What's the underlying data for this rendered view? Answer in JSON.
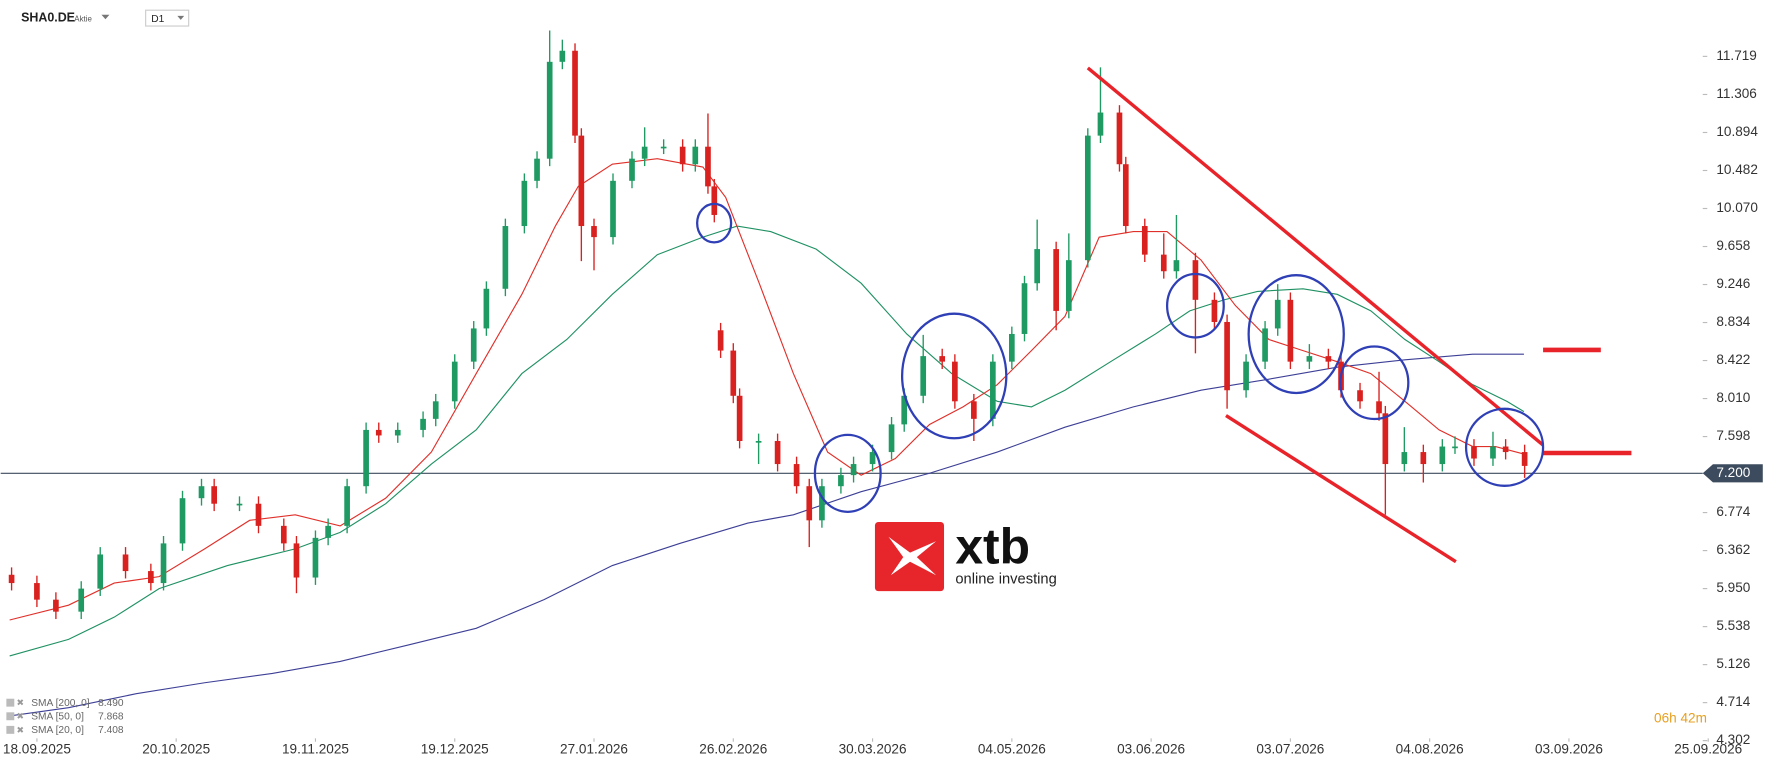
{
  "header": {
    "symbol": "SHA0.DE",
    "instrument_type": "Aktie",
    "interval": "D1"
  },
  "chart_data": {
    "type": "candlestick",
    "x": [
      -4,
      0,
      3,
      7,
      10,
      14,
      18,
      20,
      23,
      26,
      28,
      32,
      35,
      39,
      41,
      44,
      46,
      49,
      52,
      54,
      57,
      61,
      63,
      66,
      69,
      71,
      74,
      77,
      79,
      81,
      83,
      85,
      86,
      88,
      91,
      94,
      96,
      99,
      102,
      104,
      106,
      107,
      108,
      110,
      111,
      114,
      117,
      120,
      122,
      124,
      127,
      129,
      132,
      135,
      137,
      140,
      143,
      145,
      148,
      151,
      154,
      156,
      158,
      161,
      163,
      166,
      168,
      171,
      172,
      175,
      178,
      180,
      183,
      186,
      188,
      191,
      194,
      196,
      198,
      201,
      204,
      206,
      209,
      212,
      213,
      216,
      219,
      222,
      224,
      227,
      230,
      232,
      235
    ],
    "open": [
      6.1,
      6.01,
      5.83,
      5.7,
      5.95,
      6.32,
      6.14,
      6.01,
      6.44,
      6.93,
      7.06,
      6.87,
      6.87,
      6.63,
      6.44,
      6.07,
      6.5,
      6.63,
      7.06,
      7.67,
      7.61,
      7.67,
      7.79,
      7.98,
      8.41,
      8.77,
      9.2,
      9.88,
      10.37,
      10.61,
      11.66,
      11.78,
      10.86,
      9.88,
      9.76,
      10.37,
      10.61,
      10.74,
      10.74,
      10.55,
      10.74,
      10.31,
      8.75,
      8.53,
      8.04,
      7.55,
      7.55,
      7.3,
      7.06,
      6.69,
      7.06,
      7.18,
      7.3,
      7.43,
      7.73,
      8.04,
      8.47,
      8.41,
      7.98,
      7.79,
      8.41,
      8.71,
      9.26,
      9.63,
      8.96,
      9.51,
      10.86,
      11.11,
      10.55,
      9.88,
      9.57,
      9.39,
      9.51,
      9.08,
      8.84,
      8.1,
      8.41,
      8.77,
      9.08,
      8.41,
      8.47,
      8.41,
      8.1,
      7.98,
      7.85,
      7.3,
      7.43,
      7.3,
      7.49,
      7.49,
      7.36,
      7.49,
      7.43
    ],
    "high": [
      6.18,
      6.09,
      5.91,
      6.03,
      6.4,
      6.4,
      6.22,
      6.52,
      7.01,
      7.14,
      7.14,
      6.95,
      6.95,
      6.71,
      6.52,
      6.58,
      6.71,
      7.14,
      7.75,
      7.75,
      7.75,
      7.87,
      8.06,
      8.49,
      8.85,
      9.28,
      9.96,
      10.45,
      10.69,
      12.0,
      11.9,
      11.86,
      10.94,
      9.96,
      10.45,
      10.69,
      10.95,
      10.82,
      10.82,
      10.82,
      11.1,
      10.39,
      8.83,
      8.61,
      8.12,
      7.63,
      7.63,
      7.38,
      7.14,
      7.14,
      7.26,
      7.38,
      7.51,
      7.81,
      8.12,
      8.7,
      8.55,
      8.49,
      8.06,
      8.49,
      8.79,
      9.34,
      9.95,
      9.71,
      9.8,
      10.94,
      11.6,
      11.19,
      10.63,
      9.96,
      9.8,
      10.0,
      9.59,
      9.16,
      8.92,
      8.49,
      8.85,
      9.25,
      9.16,
      8.6,
      8.55,
      8.49,
      8.18,
      8.3,
      7.93,
      7.7,
      7.51,
      7.57,
      7.6,
      7.57,
      7.65,
      7.57,
      7.51
    ],
    "low": [
      5.93,
      5.75,
      5.62,
      5.62,
      5.87,
      6.06,
      5.93,
      5.93,
      6.36,
      6.85,
      6.79,
      6.79,
      6.55,
      6.36,
      5.9,
      5.99,
      6.42,
      6.55,
      6.98,
      7.53,
      7.53,
      7.59,
      7.71,
      7.9,
      8.33,
      8.69,
      9.12,
      9.8,
      10.29,
      10.53,
      11.58,
      10.78,
      9.5,
      9.4,
      9.68,
      10.29,
      10.53,
      10.66,
      10.47,
      10.47,
      10.23,
      9.92,
      8.45,
      7.96,
      7.47,
      7.3,
      7.22,
      6.98,
      6.4,
      6.61,
      6.98,
      7.1,
      7.22,
      7.35,
      7.65,
      7.96,
      8.33,
      7.9,
      7.55,
      7.71,
      8.33,
      8.63,
      9.18,
      8.75,
      8.88,
      9.43,
      10.78,
      10.47,
      9.8,
      9.49,
      9.31,
      9.31,
      8.5,
      8.76,
      7.9,
      8.02,
      8.33,
      8.69,
      8.33,
      8.33,
      8.33,
      8.02,
      7.9,
      7.77,
      6.75,
      7.22,
      7.1,
      7.22,
      7.41,
      7.28,
      7.28,
      7.35,
      7.15
    ],
    "close": [
      6.01,
      5.83,
      5.7,
      5.95,
      6.32,
      6.14,
      6.01,
      6.44,
      6.93,
      7.06,
      6.87,
      6.87,
      6.63,
      6.44,
      6.07,
      6.5,
      6.63,
      7.06,
      7.67,
      7.61,
      7.67,
      7.79,
      7.98,
      8.41,
      8.77,
      9.2,
      9.88,
      10.37,
      10.61,
      11.66,
      11.78,
      10.86,
      9.88,
      9.76,
      10.37,
      10.61,
      10.74,
      10.74,
      10.55,
      10.74,
      10.31,
      10.0,
      8.53,
      8.04,
      7.55,
      7.55,
      7.3,
      7.06,
      6.69,
      7.06,
      7.18,
      7.3,
      7.43,
      7.73,
      8.04,
      8.47,
      8.41,
      7.98,
      7.79,
      8.41,
      8.71,
      9.26,
      9.63,
      8.96,
      9.51,
      10.86,
      11.11,
      10.55,
      9.88,
      9.57,
      9.39,
      9.51,
      9.08,
      8.84,
      8.1,
      8.41,
      8.77,
      9.08,
      8.41,
      8.47,
      8.41,
      8.1,
      7.98,
      7.85,
      7.3,
      7.43,
      7.3,
      7.49,
      7.49,
      7.36,
      7.49,
      7.43,
      7.28
    ],
    "up_color": "#1e9a62",
    "down_color": "#d9211f",
    "xlim": [
      -5.72,
      262.6
    ],
    "xticks": [
      {
        "value": 0,
        "label": "18.09.2025"
      },
      {
        "value": 22,
        "label": "20.10.2025"
      },
      {
        "value": 44,
        "label": "19.11.2025"
      },
      {
        "value": 66,
        "label": "19.12.2025"
      },
      {
        "value": 88,
        "label": "27.01.2026"
      },
      {
        "value": 110,
        "label": "26.02.2026"
      },
      {
        "value": 132,
        "label": "30.03.2026"
      },
      {
        "value": 154,
        "label": "04.05.2026"
      },
      {
        "value": 176,
        "label": "03.06.2026"
      },
      {
        "value": 198,
        "label": "03.07.2026"
      },
      {
        "value": 220,
        "label": "04.08.2026"
      },
      {
        "value": 242,
        "label": "03.09.2026"
      },
      {
        "value": 264,
        "label": "25.09.2026"
      }
    ],
    "ylim": [
      4.29,
      12.33
    ],
    "yticks": [
      11.719,
      11.306,
      10.894,
      10.482,
      {
        "value": 10.07,
        "label": "10.070"
      },
      9.658,
      9.246,
      8.834,
      8.422,
      {
        "value": 8.01,
        "label": "8.010"
      },
      7.598,
      6.774,
      6.362,
      {
        "value": 5.95,
        "label": "5.950"
      },
      5.538,
      5.126,
      4.714,
      4.302
    ],
    "grid": false,
    "price_line": {
      "value": 7.2,
      "label": "7.200"
    },
    "overlays": [
      {
        "name": "SMA [200, 0]",
        "legend_value": "8.490",
        "color": "#3d3f96",
        "x": [
          -4.3,
          5.0,
          15.7,
          26.5,
          37.2,
          47.9,
          58.7,
          69.4,
          80.1,
          90.9,
          101.6,
          112.3,
          119.5,
          130.2,
          141.0,
          151.7,
          162.4,
          173.2,
          183.9,
          194.6,
          205.4,
          216.1,
          226.8,
          234.9
        ],
        "values": [
          4.57,
          4.66,
          4.81,
          4.93,
          5.03,
          5.16,
          5.34,
          5.52,
          5.83,
          6.2,
          6.44,
          6.66,
          6.75,
          7.0,
          7.2,
          7.43,
          7.7,
          7.92,
          8.1,
          8.22,
          8.35,
          8.43,
          8.49,
          8.49
        ]
      },
      {
        "name": "SMA [50, 0]",
        "legend_value": "7.868",
        "color": "#1f9163",
        "x": [
          -4.3,
          5.0,
          12.2,
          19.3,
          30.1,
          40.8,
          47.9,
          55.1,
          62.3,
          69.4,
          76.6,
          83.7,
          90.9,
          98.0,
          105.2,
          110.6,
          115.9,
          123.1,
          130.2,
          137.4,
          144.5,
          151.7,
          157.1,
          162.4,
          169.6,
          176.7,
          182.1,
          187.5,
          192.8,
          200.0,
          205.4,
          210.7,
          216.1,
          221.5,
          226.8,
          232.2,
          234.9
        ],
        "values": [
          5.22,
          5.4,
          5.64,
          5.95,
          6.2,
          6.38,
          6.56,
          6.87,
          7.3,
          7.67,
          8.28,
          8.65,
          9.14,
          9.57,
          9.76,
          9.88,
          9.82,
          9.63,
          9.26,
          8.71,
          8.28,
          7.98,
          7.92,
          8.1,
          8.41,
          8.71,
          8.96,
          9.08,
          9.17,
          9.2,
          9.14,
          8.96,
          8.65,
          8.41,
          8.16,
          7.98,
          7.868
        ]
      },
      {
        "name": "SMA [20, 0]",
        "legend_value": "7.408",
        "color": "#e0302a",
        "x": [
          -4.3,
          5.0,
          12.2,
          19.3,
          26.5,
          33.6,
          40.8,
          47.9,
          55.1,
          62.3,
          69.4,
          76.6,
          81.9,
          85.5,
          90.9,
          98.0,
          105.2,
          108.8,
          114.1,
          119.5,
          124.9,
          130.2,
          135.6,
          141.0,
          146.3,
          151.7,
          157.1,
          162.4,
          167.8,
          173.2,
          178.5,
          183.9,
          189.3,
          194.6,
          200.0,
          205.4,
          210.7,
          216.1,
          221.5,
          226.8,
          230.4,
          234.9
        ],
        "values": [
          5.61,
          5.77,
          6.01,
          6.08,
          6.38,
          6.69,
          6.75,
          6.63,
          6.93,
          7.43,
          8.28,
          9.14,
          9.88,
          10.31,
          10.55,
          10.61,
          10.52,
          10.19,
          9.26,
          8.28,
          7.43,
          7.18,
          7.36,
          7.73,
          7.92,
          8.16,
          8.53,
          8.9,
          9.76,
          9.82,
          9.82,
          9.51,
          9.02,
          8.65,
          8.53,
          8.41,
          8.28,
          7.98,
          7.67,
          7.49,
          7.49,
          7.408
        ]
      }
    ]
  },
  "countdown": "06h 42m",
  "logo": {
    "name": "xtb",
    "tagline": "online investing"
  }
}
